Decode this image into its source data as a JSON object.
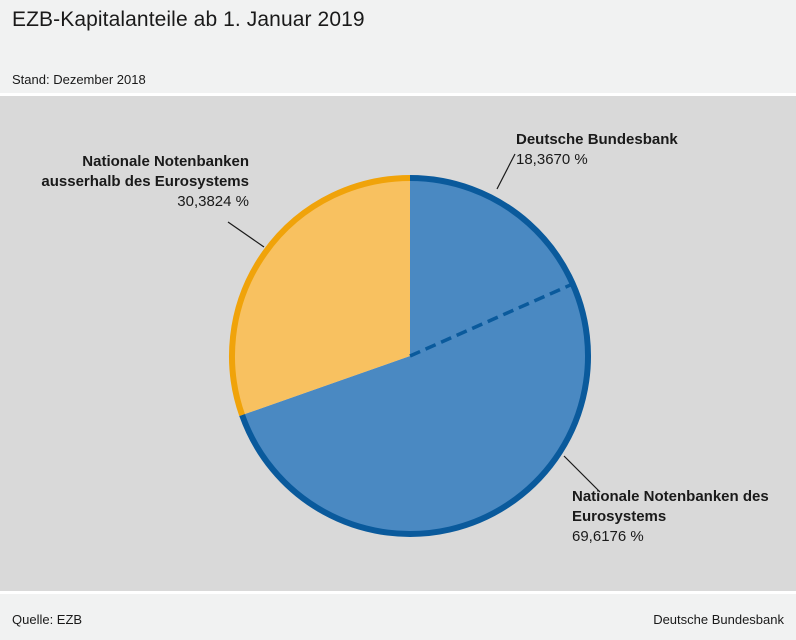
{
  "header": {
    "title": "EZB-Kapitalanteile ab 1. Januar 2019",
    "subtitle": "Stand: Dezember 2018"
  },
  "footer": {
    "source": "Quelle: EZB",
    "publisher": "Deutsche Bundesbank"
  },
  "chart_data": {
    "type": "pie",
    "start_angle_deg": 0,
    "direction": "clockwise",
    "slices": [
      {
        "name": "Nationale Notenbanken des Eurosystems",
        "value": 69.6176,
        "value_label": "69,6176 %",
        "fill": "#4a89c2",
        "stroke": "#0a5a9c"
      },
      {
        "name": "Nationale Notenbanken ausserhalb des Eurosystems",
        "value": 30.3824,
        "value_label": "30,3824 %",
        "fill": "#f8c160",
        "stroke": "#f0a30a"
      }
    ],
    "sub_slices": [
      {
        "name": "Deutsche Bundesbank",
        "value": 18.367,
        "value_label": "18,3670 %",
        "within": "Nationale Notenbanken des Eurosystems"
      }
    ]
  }
}
